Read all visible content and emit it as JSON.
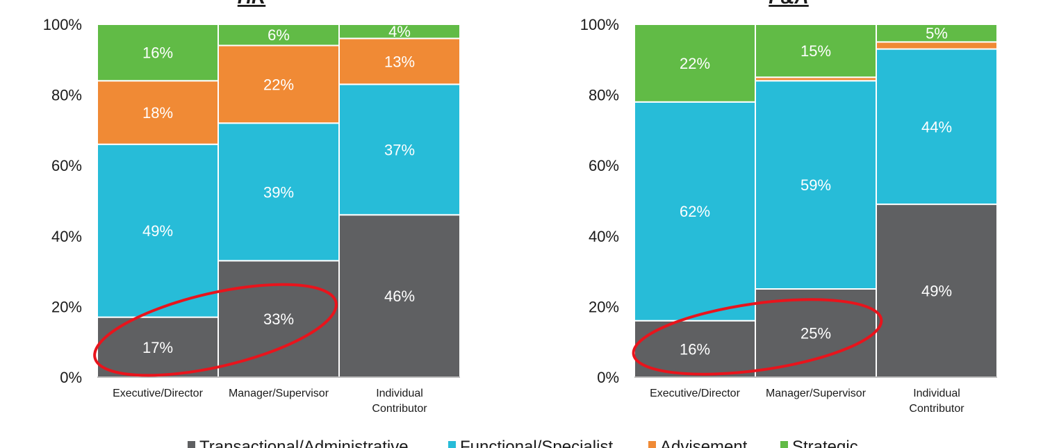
{
  "chart_data": [
    {
      "type": "bar",
      "stacked": true,
      "title": "HR",
      "categories": [
        "Executive/Director",
        "Manager/Supervisor",
        "Individual Contributor"
      ],
      "ylim": [
        0,
        100
      ],
      "yticks": [
        "0%",
        "20%",
        "40%",
        "60%",
        "80%",
        "100%"
      ],
      "series": [
        {
          "name": "Transactional/Administrative",
          "color": "#5f6062",
          "values": [
            17,
            33,
            46
          ],
          "labels": [
            "17%",
            "33%",
            "46%"
          ]
        },
        {
          "name": "Functional/Specialist",
          "color": "#27bcd8",
          "values": [
            49,
            39,
            37
          ],
          "labels": [
            "49%",
            "39%",
            "37%"
          ]
        },
        {
          "name": "Advisement",
          "color": "#f08a35",
          "values": [
            18,
            22,
            13
          ],
          "labels": [
            "18%",
            "22%",
            "13%"
          ]
        },
        {
          "name": "Strategic",
          "color": "#61bb46",
          "values": [
            16,
            6,
            4
          ],
          "labels": [
            "16%",
            "6%",
            "4%"
          ]
        }
      ],
      "highlight_ellipse_around": [
        "Executive/Director",
        "Manager/Supervisor"
      ],
      "highlight_series": "Transactional/Administrative"
    },
    {
      "type": "bar",
      "stacked": true,
      "title": "F&A",
      "categories": [
        "Executive/Director",
        "Manager/Supervisor",
        "Individual Contributor"
      ],
      "ylim": [
        0,
        100
      ],
      "yticks": [
        "0%",
        "20%",
        "40%",
        "60%",
        "80%",
        "100%"
      ],
      "series": [
        {
          "name": "Transactional/Administrative",
          "color": "#5f6062",
          "values": [
            16,
            25,
            49
          ],
          "labels": [
            "16%",
            "25%",
            "49%"
          ]
        },
        {
          "name": "Functional/Specialist",
          "color": "#27bcd8",
          "values": [
            62,
            59,
            44
          ],
          "labels": [
            "62%",
            "59%",
            "44%"
          ]
        },
        {
          "name": "Advisement",
          "color": "#f08a35",
          "values": [
            0,
            1,
            2
          ],
          "labels": [
            "",
            "",
            ""
          ]
        },
        {
          "name": "Strategic",
          "color": "#61bb46",
          "values": [
            22,
            15,
            5
          ],
          "labels": [
            "22%",
            "15%",
            "5%"
          ]
        }
      ],
      "highlight_ellipse_around": [
        "Executive/Director",
        "Manager/Supervisor"
      ],
      "highlight_series": "Transactional/Administrative"
    }
  ],
  "legend": {
    "position": "bottom",
    "items": [
      {
        "label": "Transactional/Administrative",
        "color": "#5f6062"
      },
      {
        "label": "Functional/Specialist",
        "color": "#27bcd8"
      },
      {
        "label": "Advisement",
        "color": "#f08a35"
      },
      {
        "label": "Strategic",
        "color": "#61bb46"
      }
    ]
  },
  "colors": {
    "highlight": "#e8141c",
    "axis": "#a6a6a6",
    "divider": "#ffffff"
  }
}
